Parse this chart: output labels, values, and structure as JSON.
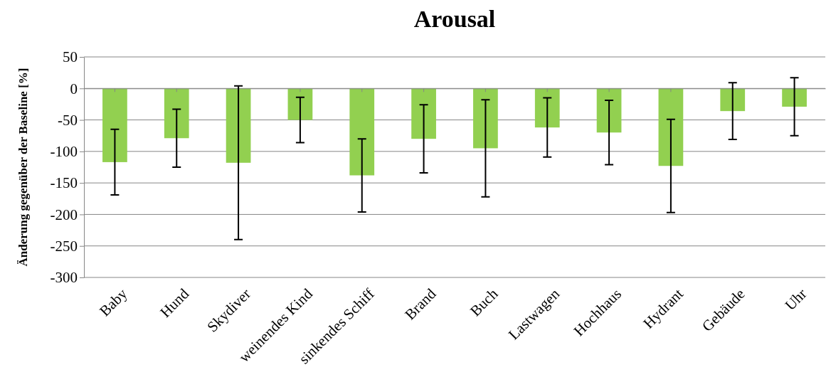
{
  "chart_data": {
    "type": "bar",
    "title": "Arousal",
    "ylabel": "Änderung gegenüber der Baseline [%]",
    "categories": [
      "Baby",
      "Hund",
      "Skydiver",
      "weinendes Kind",
      "sinkendes Schiff",
      "Brand",
      "Buch",
      "Lastwagen",
      "Hochhaus",
      "Hydrant",
      "Gebäude",
      "Uhr"
    ],
    "values": [
      -117,
      -79,
      -118,
      -50,
      -138,
      -80,
      -95,
      -62,
      -70,
      -123,
      -36,
      -29
    ],
    "errors": [
      52,
      46,
      122,
      36,
      58,
      54,
      77,
      47,
      51,
      74,
      45,
      46
    ],
    "color": "#92d050",
    "ylim": [
      -300,
      50
    ],
    "yticks": [
      -300,
      -250,
      -200,
      -150,
      -100,
      -50,
      0,
      50
    ],
    "grid": "y"
  }
}
